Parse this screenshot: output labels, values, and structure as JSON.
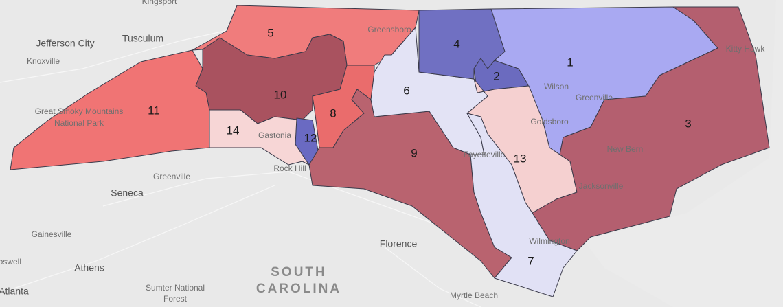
{
  "districts": [
    {
      "label": "1",
      "color": "#a9a9f2"
    },
    {
      "label": "2",
      "color": "#6b6bbf"
    },
    {
      "label": "3",
      "color": "#b45f6f"
    },
    {
      "label": "4",
      "color": "#7070c2"
    },
    {
      "label": "5",
      "color": "#f07c7c"
    },
    {
      "label": "6",
      "color": "#e3e3f5"
    },
    {
      "label": "7",
      "color": "#e1e1f5"
    },
    {
      "label": "8",
      "color": "#ea6c6c"
    },
    {
      "label": "9",
      "color": "#b9636f"
    },
    {
      "label": "10",
      "color": "#a9525f"
    },
    {
      "label": "11",
      "color": "#f07474"
    },
    {
      "label": "12",
      "color": "#6a6ac2"
    },
    {
      "label": "13",
      "color": "#f5d0d0"
    },
    {
      "label": "14",
      "color": "#f7d6d6"
    }
  ],
  "places": [
    {
      "name": "Kingsport"
    },
    {
      "name": "Jefferson City"
    },
    {
      "name": "Tusculum"
    },
    {
      "name": "Knoxville"
    },
    {
      "name": "Great Smoky Mountains"
    },
    {
      "name": "National Park"
    },
    {
      "name": "Greensboro"
    },
    {
      "name": "Kitty Hawk"
    },
    {
      "name": "Wilson"
    },
    {
      "name": "Greenville"
    },
    {
      "name": "Goldsboro"
    },
    {
      "name": "Gastonia"
    },
    {
      "name": "Rock Hill"
    },
    {
      "name": "New Bern"
    },
    {
      "name": "Fayetteville"
    },
    {
      "name": "Jacksonville"
    },
    {
      "name": "Greenville"
    },
    {
      "name": "Seneca"
    },
    {
      "name": "Gainesville"
    },
    {
      "name": "Florence"
    },
    {
      "name": "Wilmington"
    },
    {
      "name": "Athens"
    },
    {
      "name": "Roswell"
    },
    {
      "name": "Atlanta"
    },
    {
      "name": "Sumter National"
    },
    {
      "name": "Forest"
    },
    {
      "name": "Myrtle Beach"
    }
  ],
  "region_label": [
    "SOUTH",
    "CAROLINA"
  ]
}
